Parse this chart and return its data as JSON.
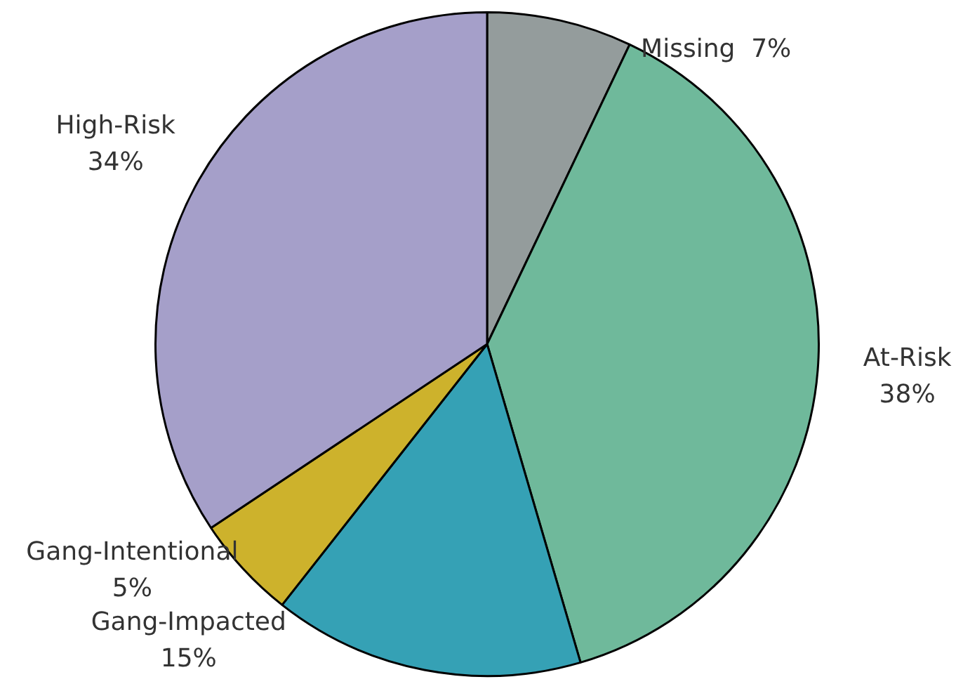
{
  "chart_data": {
    "type": "pie",
    "categories": [
      "Missing",
      "At-Risk",
      "Gang-Impacted",
      "Gang-Intentional",
      "High-Risk"
    ],
    "values": [
      7,
      38,
      15,
      5,
      34
    ],
    "value_labels": [
      "7%",
      "38%",
      "15%",
      "5%",
      "34%"
    ],
    "colors": [
      "#949c9c",
      "#6fb99b",
      "#35a1b5",
      "#cdb22c",
      "#a59fc9"
    ],
    "legend": false
  }
}
